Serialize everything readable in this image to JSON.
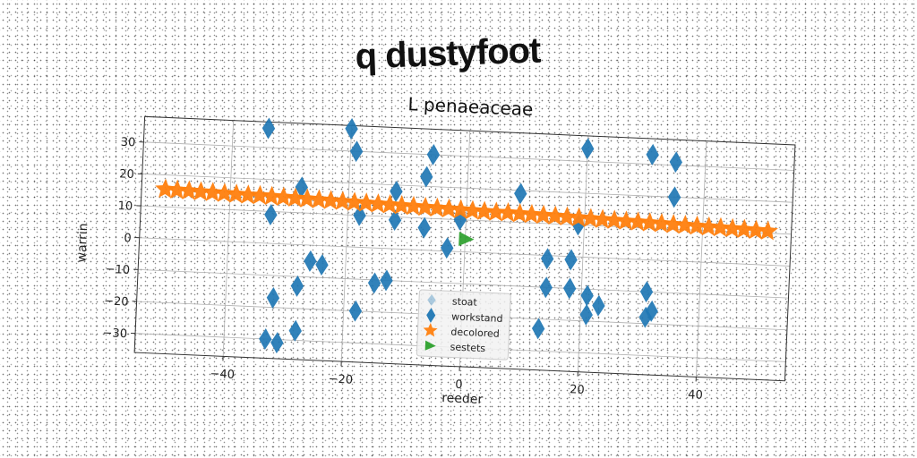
{
  "figure_title": "q dustyfoot",
  "colors": {
    "blue": "#1f77b4",
    "orange": "#ff7f0e",
    "green": "#2ca02c",
    "grid": "#b0b0b0"
  },
  "chart_data": {
    "type": "scatter",
    "title": "L penaeaceae",
    "xlabel": "reeder",
    "ylabel": "warrin",
    "xlim": [
      -55,
      55
    ],
    "ylim": [
      -36,
      38
    ],
    "xticks": [
      -40,
      -20,
      0,
      20,
      40
    ],
    "yticks": [
      -30,
      -20,
      -10,
      0,
      10,
      20,
      30
    ],
    "grid": true,
    "legend": {
      "placement": "lower-center",
      "entries": [
        "stoat",
        "workstand",
        "decolored",
        "sestets"
      ]
    },
    "series": [
      {
        "name": "stoat",
        "marker": "diamond",
        "color": "#1f77b4",
        "points": []
      },
      {
        "name": "workstand",
        "marker": "thin-diamond",
        "color": "#1f77b4",
        "points": [
          [
            -34,
            36
          ],
          [
            -20,
            37
          ],
          [
            -19,
            30
          ],
          [
            -6,
            30
          ],
          [
            20,
            34
          ],
          [
            31,
            33
          ],
          [
            35,
            31
          ],
          [
            -7,
            23
          ],
          [
            -28,
            18
          ],
          [
            -12,
            18
          ],
          [
            9,
            19
          ],
          [
            35,
            20
          ],
          [
            -33,
            9
          ],
          [
            -18,
            10
          ],
          [
            -12,
            9
          ],
          [
            -7,
            7
          ],
          [
            -1,
            10
          ],
          [
            19,
            10
          ],
          [
            -3,
            1
          ],
          [
            -26,
            -5
          ],
          [
            -24,
            -6
          ],
          [
            14,
            -1
          ],
          [
            18,
            -1
          ],
          [
            -15,
            -11
          ],
          [
            -13,
            -10
          ],
          [
            14,
            -10
          ],
          [
            18,
            -10
          ],
          [
            21,
            -12
          ],
          [
            31,
            -10
          ],
          [
            -28,
            -13
          ],
          [
            -32,
            -17
          ],
          [
            23,
            -15
          ],
          [
            21,
            -18
          ],
          [
            32,
            -16
          ],
          [
            31,
            -18
          ],
          [
            -18,
            -20
          ],
          [
            13,
            -23
          ],
          [
            -28,
            -27
          ],
          [
            -33,
            -30
          ],
          [
            -31,
            -31
          ]
        ]
      },
      {
        "name": "decolored",
        "marker": "star",
        "color": "#ff7f0e",
        "points": [
          [
            -51,
            15.5
          ],
          [
            -49,
            15.4
          ],
          [
            -47,
            15.3
          ],
          [
            -45,
            15.2
          ],
          [
            -43,
            15.1
          ],
          [
            -41,
            15.0
          ],
          [
            -39,
            14.9
          ],
          [
            -37,
            14.8
          ],
          [
            -35,
            14.8
          ],
          [
            -33,
            14.7
          ],
          [
            -31,
            14.6
          ],
          [
            -29,
            14.5
          ],
          [
            -27,
            14.4
          ],
          [
            -25,
            14.3
          ],
          [
            -23,
            14.2
          ],
          [
            -21,
            14.1
          ],
          [
            -19,
            14.0
          ],
          [
            -17,
            13.9
          ],
          [
            -15,
            13.8
          ],
          [
            -13,
            13.7
          ],
          [
            -11,
            13.6
          ],
          [
            -9,
            13.5
          ],
          [
            -7,
            13.4
          ],
          [
            -5,
            13.3
          ],
          [
            -3,
            13.2
          ],
          [
            -1,
            13.1
          ],
          [
            1,
            13.0
          ],
          [
            3,
            12.9
          ],
          [
            5,
            12.8
          ],
          [
            7,
            12.8
          ],
          [
            9,
            12.7
          ],
          [
            11,
            12.6
          ],
          [
            13,
            12.5
          ],
          [
            15,
            12.4
          ],
          [
            17,
            12.3
          ],
          [
            19,
            12.2
          ],
          [
            21,
            12.1
          ],
          [
            23,
            12.0
          ],
          [
            25,
            11.9
          ],
          [
            27,
            11.8
          ],
          [
            29,
            11.7
          ],
          [
            31,
            11.6
          ],
          [
            33,
            11.5
          ],
          [
            35,
            11.4
          ],
          [
            37,
            11.3
          ],
          [
            39,
            11.2
          ],
          [
            41,
            11.1
          ],
          [
            43,
            11.0
          ],
          [
            45,
            10.9
          ],
          [
            47,
            10.8
          ],
          [
            49,
            10.7
          ],
          [
            51,
            10.6
          ]
        ]
      },
      {
        "name": "sestets",
        "marker": "triangle-right",
        "color": "#2ca02c",
        "points": [
          [
            0,
            4
          ]
        ]
      }
    ]
  }
}
